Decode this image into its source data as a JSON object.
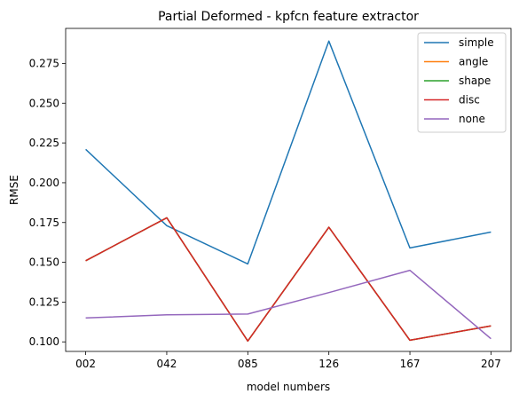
{
  "chart_data": {
    "type": "line",
    "title": "Partial Deformed - kpfcn feature extractor",
    "xlabel": "model numbers",
    "ylabel": "RMSE",
    "categories": [
      "002",
      "042",
      "085",
      "126",
      "167",
      "207"
    ],
    "ylim": [
      0.094,
      0.297
    ],
    "yticks": [
      0.1,
      0.125,
      0.15,
      0.175,
      0.2,
      0.225,
      0.25,
      0.275
    ],
    "ytick_labels": [
      "0.100",
      "0.125",
      "0.150",
      "0.175",
      "0.200",
      "0.225",
      "0.250",
      "0.275"
    ],
    "grid": false,
    "legend_position": "top-right",
    "series": [
      {
        "name": "simple",
        "color": "#1f77b4",
        "values": [
          0.221,
          0.173,
          0.149,
          0.289,
          0.159,
          0.169
        ]
      },
      {
        "name": "angle",
        "color": "#ff7f0e",
        "values": [
          0.151,
          0.178,
          0.1005,
          0.172,
          0.101,
          0.11
        ]
      },
      {
        "name": "shape",
        "color": "#2ca02c",
        "values": [
          0.151,
          0.178,
          0.1005,
          0.172,
          0.101,
          0.11
        ]
      },
      {
        "name": "disc",
        "color": "#d62728",
        "values": [
          0.151,
          0.178,
          0.1005,
          0.172,
          0.101,
          0.11
        ]
      },
      {
        "name": "none",
        "color": "#9467bd",
        "values": [
          0.115,
          0.117,
          0.1175,
          0.131,
          0.145,
          0.102
        ]
      }
    ]
  }
}
